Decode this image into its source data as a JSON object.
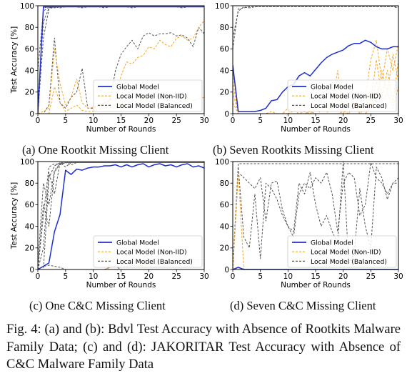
{
  "figure_caption": "Fig. 4: (a) and (b): Bdvl Test Accuracy with Absence of Rootkits Malware Family Data; (c) and (d): JAKORITAR Test Accuracy with Absence of C&C Malware Family Data",
  "colors": {
    "global": "#1f2fcf",
    "noniid": "#f5a623",
    "balanced": "#555555"
  },
  "chart_data": [
    {
      "type": "line",
      "id": "a",
      "caption": "(a) One Rootkit Missing Client",
      "xlabel": "Number of Rounds",
      "ylabel": "Test Accuracy [%]",
      "xlim": [
        0,
        30
      ],
      "ylim": [
        0,
        100
      ],
      "xticks": [
        0,
        5,
        10,
        15,
        20,
        25,
        30
      ],
      "yticks": [
        0,
        20,
        40,
        60,
        80,
        100
      ],
      "legend": [
        "Global Model",
        "Local Model (Non-IID)",
        "Local Model (Balanced)"
      ],
      "series": [
        {
          "kind": "balanced",
          "y": [
            0,
            98,
            99,
            99,
            99,
            99,
            99,
            99,
            99,
            99,
            99,
            99,
            99,
            99,
            99,
            99,
            99,
            99,
            99,
            99,
            99,
            99,
            99,
            99,
            99,
            99,
            99,
            99,
            99,
            99,
            99
          ]
        },
        {
          "kind": "balanced",
          "y": [
            40,
            95,
            99,
            98,
            99,
            99,
            99,
            99,
            99,
            99,
            99,
            99,
            99,
            99,
            99,
            99,
            99,
            99,
            99,
            99,
            99,
            99,
            99,
            99,
            99,
            99,
            99,
            99,
            99,
            99,
            99
          ]
        },
        {
          "kind": "balanced",
          "y": [
            10,
            85,
            98,
            99,
            98,
            99,
            99,
            99,
            98,
            99,
            99,
            99,
            98,
            99,
            99,
            99,
            99,
            98,
            99,
            99,
            99,
            99,
            99,
            99,
            99,
            99,
            98,
            99,
            99,
            99,
            99
          ]
        },
        {
          "kind": "balanced",
          "y": [
            0,
            70,
            97,
            99,
            99,
            99,
            99,
            99,
            99,
            99,
            99,
            99,
            99,
            99,
            99,
            99,
            99,
            99,
            99,
            99,
            99,
            99,
            99,
            99,
            99,
            99,
            99,
            99,
            99,
            99,
            99
          ]
        },
        {
          "kind": "balanced",
          "y": [
            0,
            0,
            8,
            70,
            10,
            5,
            15,
            20,
            42,
            5,
            5,
            8,
            10,
            12,
            40,
            55,
            62,
            68,
            60,
            72,
            75,
            72,
            74,
            74,
            75,
            72,
            73,
            70,
            62,
            80,
            74
          ]
        },
        {
          "kind": "noniid",
          "y": [
            0,
            2,
            5,
            60,
            28,
            8,
            15,
            32,
            10,
            5,
            6,
            8,
            10,
            12,
            14,
            35,
            48,
            46,
            52,
            54,
            62,
            60,
            68,
            64,
            62,
            70,
            72,
            68,
            70,
            80,
            86
          ]
        },
        {
          "kind": "noniid",
          "y": [
            0,
            0,
            0,
            25,
            10,
            2,
            5,
            8,
            3,
            2,
            2,
            4,
            5,
            6,
            5,
            10,
            8,
            12,
            10,
            14,
            12,
            10,
            15,
            12,
            14,
            10,
            12,
            15,
            12,
            14,
            15
          ]
        },
        {
          "kind": "global",
          "y": [
            0,
            99,
            99,
            99,
            99,
            99,
            99,
            99,
            99,
            99,
            99,
            99,
            99,
            99,
            99,
            99,
            99,
            99,
            99,
            99,
            99,
            99,
            99,
            99,
            99,
            99,
            99,
            99,
            99,
            99,
            99
          ]
        }
      ]
    },
    {
      "type": "line",
      "id": "b",
      "caption": "(b) Seven Rootkits Missing Client",
      "xlabel": "Number of Rounds",
      "ylabel": "",
      "xlim": [
        0,
        30
      ],
      "ylim": [
        0,
        100
      ],
      "xticks": [
        0,
        5,
        10,
        15,
        20,
        25,
        30
      ],
      "yticks": [
        0,
        20,
        40,
        60,
        80,
        100
      ],
      "legend": [
        "Global Model",
        "Local Model (Non-IID)",
        "Local Model (Balanced)"
      ],
      "series": [
        {
          "kind": "balanced",
          "y": [
            60,
            97,
            98,
            99,
            99,
            99,
            99,
            99,
            99,
            99,
            99,
            99,
            99,
            99,
            99,
            99,
            99,
            99,
            99,
            99,
            99,
            99,
            99,
            99,
            99,
            99,
            99,
            99,
            99,
            99,
            99
          ]
        },
        {
          "kind": "balanced",
          "y": [
            70,
            95,
            99,
            98,
            99,
            99,
            99,
            99,
            99,
            99,
            99,
            99,
            99,
            99,
            99,
            99,
            99,
            99,
            99,
            99,
            99,
            99,
            99,
            99,
            99,
            99,
            99,
            99,
            99,
            99,
            98
          ]
        },
        {
          "kind": "noniid",
          "y": [
            40,
            0,
            0,
            0,
            0,
            0,
            0,
            2,
            0,
            0,
            5,
            0,
            0,
            2,
            0,
            0,
            0,
            0,
            10,
            40,
            0,
            5,
            10,
            5,
            15,
            50,
            68,
            30,
            60,
            40,
            65
          ]
        },
        {
          "kind": "noniid",
          "y": [
            30,
            0,
            0,
            0,
            0,
            0,
            0,
            0,
            0,
            0,
            0,
            3,
            0,
            0,
            0,
            5,
            0,
            0,
            0,
            0,
            0,
            0,
            10,
            0,
            5,
            20,
            10,
            40,
            20,
            55,
            30
          ]
        },
        {
          "kind": "noniid",
          "y": [
            20,
            0,
            0,
            0,
            0,
            0,
            0,
            0,
            0,
            0,
            0,
            0,
            0,
            0,
            2,
            0,
            0,
            0,
            0,
            0,
            2,
            0,
            0,
            0,
            0,
            10,
            50,
            15,
            40,
            10,
            50
          ]
        },
        {
          "kind": "noniid",
          "y": [
            10,
            0,
            0,
            0,
            0,
            0,
            0,
            0,
            0,
            0,
            0,
            0,
            0,
            0,
            0,
            0,
            0,
            0,
            0,
            0,
            0,
            0,
            0,
            0,
            0,
            5,
            30,
            10,
            20,
            5,
            25
          ]
        },
        {
          "kind": "global",
          "y": [
            45,
            2,
            2,
            2,
            2,
            3,
            5,
            12,
            13,
            20,
            25,
            27,
            35,
            38,
            35,
            41,
            47,
            52,
            55,
            57,
            59,
            63,
            65,
            65,
            68,
            66,
            62,
            60,
            60,
            62,
            62
          ]
        }
      ]
    },
    {
      "type": "line",
      "id": "c",
      "caption": "(c) One C&C Missing Client",
      "xlabel": "Number of Rounds",
      "ylabel": "Test Accuracy [%]",
      "xlim": [
        0,
        30
      ],
      "ylim": [
        0,
        100
      ],
      "xticks": [
        0,
        5,
        10,
        15,
        20,
        25,
        30
      ],
      "yticks": [
        0,
        20,
        40,
        60,
        80,
        100
      ],
      "legend": [
        "Global Model",
        "Local Model (Non-IID)",
        "Local Model (Balanced)"
      ],
      "series": [
        {
          "kind": "balanced",
          "y": [
            0,
            50,
            95,
            98,
            97,
            99,
            99,
            99,
            99,
            99,
            99,
            99,
            99,
            99,
            99,
            99,
            99,
            99,
            99,
            99,
            99,
            99,
            99,
            99,
            99,
            99,
            99,
            99,
            99,
            99,
            99
          ]
        },
        {
          "kind": "balanced",
          "y": [
            5,
            80,
            60,
            92,
            98,
            99,
            99,
            99,
            99,
            99,
            99,
            99,
            99,
            99,
            99,
            99,
            99,
            99,
            99,
            99,
            99,
            99,
            99,
            99,
            99,
            99,
            99,
            99,
            99,
            99,
            99
          ]
        },
        {
          "kind": "balanced",
          "y": [
            0,
            20,
            90,
            70,
            99,
            95,
            99,
            99,
            99,
            99,
            99,
            99,
            99,
            99,
            99,
            99,
            99,
            99,
            99,
            99,
            99,
            99,
            99,
            99,
            99,
            99,
            99,
            99,
            99,
            99,
            99
          ]
        },
        {
          "kind": "balanced",
          "y": [
            0,
            0,
            85,
            96,
            99,
            99,
            97,
            99,
            99,
            99,
            99,
            99,
            99,
            99,
            99,
            99,
            99,
            99,
            99,
            99,
            99,
            99,
            99,
            99,
            99,
            99,
            99,
            99,
            99,
            99,
            99
          ]
        },
        {
          "kind": "balanced",
          "y": [
            0,
            60,
            40,
            90,
            98,
            99,
            99,
            99,
            99,
            99,
            99,
            99,
            99,
            99,
            99,
            99,
            99,
            99,
            99,
            99,
            99,
            99,
            99,
            99,
            99,
            99,
            99,
            99,
            99,
            99,
            99
          ]
        },
        {
          "kind": "balanced",
          "y": [
            0,
            3,
            4,
            3,
            2,
            0,
            0,
            0,
            0,
            0,
            0,
            0,
            0,
            2,
            3,
            0,
            0,
            0,
            0,
            0,
            0,
            0,
            0,
            0,
            0,
            0,
            0,
            0,
            0,
            0,
            0
          ]
        },
        {
          "kind": "noniid",
          "y": [
            0,
            0,
            0,
            0,
            0,
            0,
            0,
            0,
            0,
            0,
            0,
            0,
            0,
            2,
            3,
            2,
            3,
            4,
            3,
            4,
            5,
            6,
            5,
            6,
            7,
            8,
            7,
            8,
            9,
            9,
            9
          ]
        },
        {
          "kind": "global",
          "y": [
            0,
            3,
            6,
            35,
            51,
            92,
            88,
            93,
            92,
            94,
            95,
            95,
            96,
            96,
            97,
            95,
            97,
            95,
            97,
            98,
            95,
            97,
            98,
            96,
            97,
            95,
            97,
            98,
            95,
            96,
            94
          ]
        }
      ]
    },
    {
      "type": "line",
      "id": "d",
      "caption": "(d) Seven C&C Missing Client",
      "xlabel": "Number of Rounds",
      "ylabel": "",
      "xlim": [
        0,
        30
      ],
      "ylim": [
        0,
        100
      ],
      "xticks": [
        0,
        5,
        10,
        15,
        20,
        25,
        30
      ],
      "yticks": [
        0,
        20,
        40,
        60,
        80,
        100
      ],
      "legend": [
        "Global Model",
        "Local Model (Non-IID)",
        "Local Model (Balanced)"
      ],
      "series": [
        {
          "kind": "balanced",
          "y": [
            0,
            95,
            30,
            20,
            70,
            10,
            80,
            75,
            65,
            50,
            40,
            35,
            80,
            70,
            90,
            60,
            40,
            50,
            35,
            25,
            100,
            5,
            15,
            75,
            40,
            20,
            95,
            85,
            65,
            80,
            80
          ]
        },
        {
          "kind": "balanced",
          "y": [
            0,
            90,
            85,
            80,
            75,
            85,
            45,
            80,
            82,
            55,
            40,
            30,
            70,
            80,
            75,
            85,
            80,
            90,
            70,
            35,
            80,
            90,
            85,
            50,
            60,
            99,
            85,
            80,
            70,
            80,
            85
          ]
        },
        {
          "kind": "balanced",
          "y": [
            0,
            98,
            98,
            98,
            98,
            98,
            98,
            98,
            98,
            98,
            98,
            98,
            98,
            98,
            98,
            98,
            98,
            98,
            98,
            98,
            98,
            98,
            98,
            98,
            98,
            98,
            98,
            98,
            98,
            98,
            98
          ]
        },
        {
          "kind": "noniid",
          "y": [
            0,
            90,
            0,
            0,
            0,
            0,
            0,
            0,
            0,
            0,
            0,
            0,
            0,
            0,
            0,
            0,
            0,
            0,
            0,
            0,
            0,
            0,
            0,
            0,
            0,
            0,
            0,
            0,
            0,
            0,
            0
          ]
        },
        {
          "kind": "global",
          "y": [
            0,
            2,
            0,
            0,
            0,
            0,
            0,
            0,
            0,
            0,
            0,
            0,
            0,
            0,
            0,
            0,
            0,
            0,
            0,
            0,
            0,
            0,
            0,
            0,
            0,
            0,
            0,
            0,
            0,
            0,
            0
          ]
        }
      ]
    }
  ]
}
